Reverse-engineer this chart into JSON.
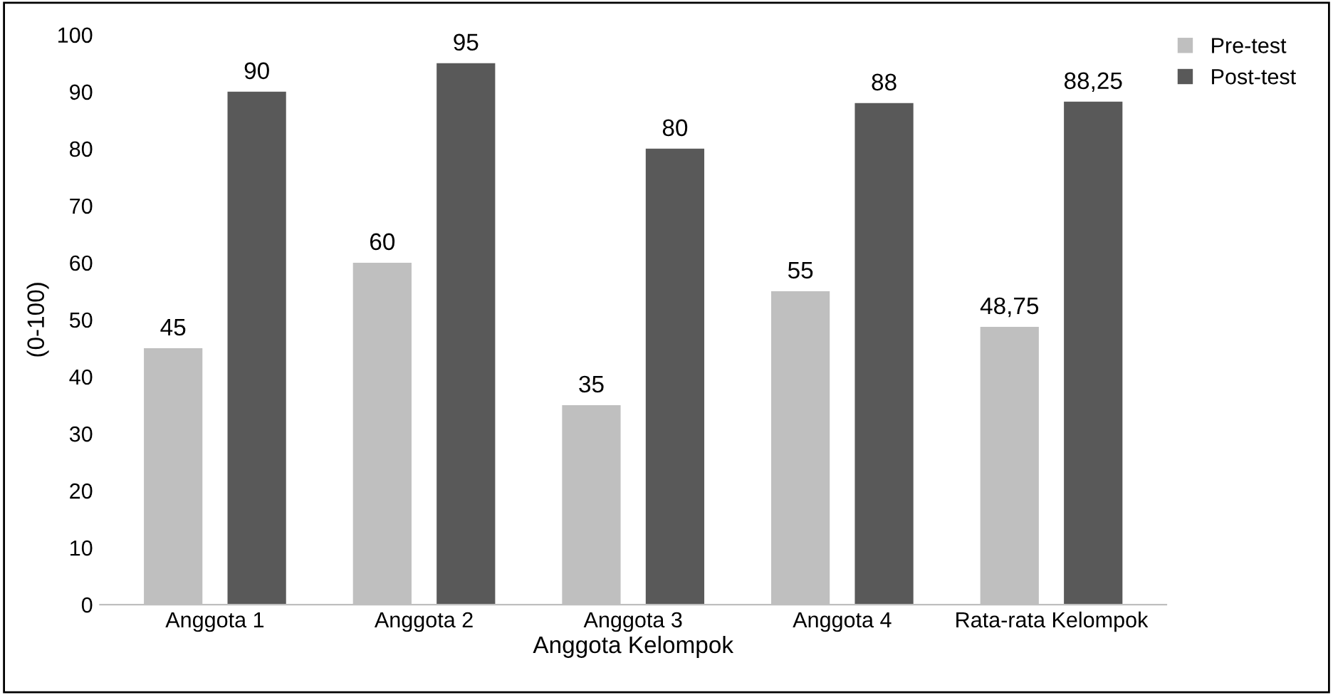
{
  "chart_data": {
    "type": "bar",
    "xlabel": "Anggota Kelompok",
    "ylabel": "(0-100)",
    "categories": [
      "Anggota 1",
      "Anggota 2",
      "Anggota 3",
      "Anggota 4",
      "Rata-rata Kelompok"
    ],
    "series": [
      {
        "name": "Pre-test",
        "color": "#bfbfbf",
        "values": [
          45,
          60,
          35,
          55,
          48.75
        ],
        "value_labels": [
          "45",
          "60",
          "35",
          "55",
          "48,75"
        ]
      },
      {
        "name": "Post-test",
        "color": "#595959",
        "values": [
          90,
          95,
          80,
          88,
          88.25
        ],
        "value_labels": [
          "90",
          "95",
          "80",
          "88",
          "88,25"
        ]
      }
    ],
    "ylim": [
      0,
      100
    ],
    "yticks": [
      0,
      10,
      20,
      30,
      40,
      50,
      60,
      70,
      80,
      90,
      100
    ],
    "grid": false,
    "legend": "top right"
  }
}
